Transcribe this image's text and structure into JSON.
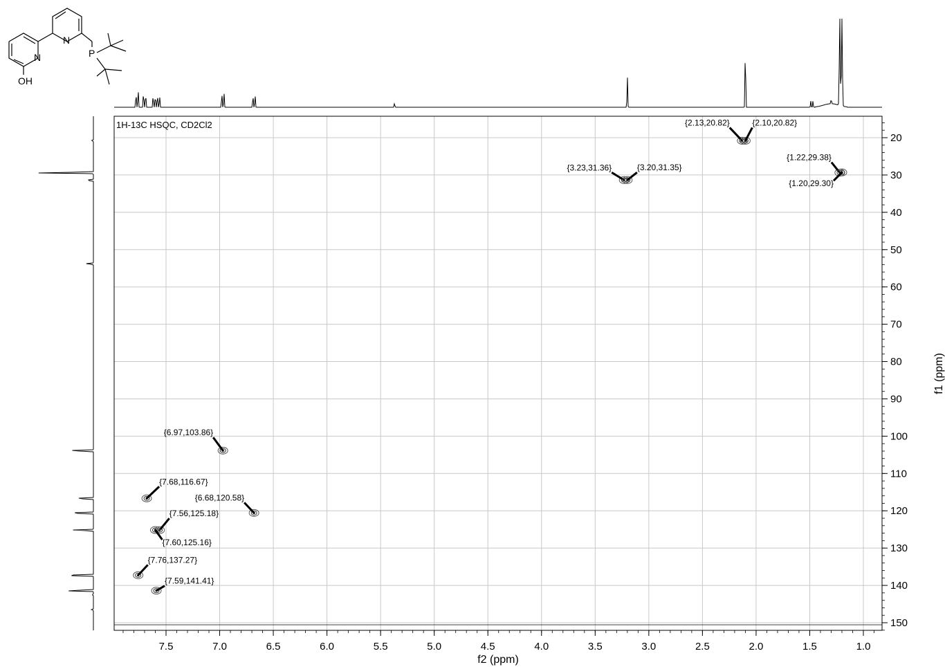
{
  "chart_data": {
    "type": "scatter",
    "title": "1H-13C HSQC, CD2Cl2",
    "xlabel": "f2 (ppm)",
    "ylabel": "f1 (ppm)",
    "xlim": [
      8.0,
      0.8
    ],
    "ylim": [
      15,
      152
    ],
    "x_reversed": true,
    "grid": true,
    "xticks": [
      7.5,
      7.0,
      6.5,
      6.0,
      5.5,
      5.0,
      4.5,
      4.0,
      3.5,
      3.0,
      2.5,
      2.0,
      1.5,
      1.0
    ],
    "yticks": [
      20,
      30,
      40,
      50,
      60,
      70,
      80,
      90,
      100,
      110,
      120,
      130,
      140,
      150
    ],
    "xtick_labels": [
      "7.5",
      "7.0",
      "6.5",
      "6.0",
      "5.5",
      "5.0",
      "4.5",
      "4.0",
      "3.5",
      "3.0",
      "2.5",
      "2.0",
      "1.5",
      "1.0"
    ],
    "ytick_labels": [
      "20",
      "30",
      "40",
      "50",
      "60",
      "70",
      "80",
      "90",
      "100",
      "110",
      "120",
      "130",
      "140",
      "150"
    ],
    "peaks": [
      {
        "x": 2.13,
        "y": 20.82,
        "label": "{2.13,20.82}"
      },
      {
        "x": 2.1,
        "y": 20.82,
        "label": "{2.10,20.82}"
      },
      {
        "x": 3.23,
        "y": 31.36,
        "label": "{3.23,31.36}"
      },
      {
        "x": 3.2,
        "y": 31.35,
        "label": "{3.20,31.35}"
      },
      {
        "x": 1.22,
        "y": 29.38,
        "label": "{1.22,29.38}"
      },
      {
        "x": 1.2,
        "y": 29.3,
        "label": "{1.20,29.30}"
      },
      {
        "x": 6.97,
        "y": 103.86,
        "label": "{6.97,103.86}"
      },
      {
        "x": 7.68,
        "y": 116.67,
        "label": "{7.68,116.67}"
      },
      {
        "x": 6.68,
        "y": 120.58,
        "label": "{6.68,120.58}"
      },
      {
        "x": 7.56,
        "y": 125.18,
        "label": "{7.56,125.18}"
      },
      {
        "x": 7.6,
        "y": 125.16,
        "label": "{7.60,125.16}"
      },
      {
        "x": 7.76,
        "y": 137.27,
        "label": "{7.76,137.27}"
      },
      {
        "x": 7.59,
        "y": 141.41,
        "label": "{7.59,141.41}"
      }
    ],
    "proton_projection": [
      {
        "x": 7.78,
        "h": 0.18
      },
      {
        "x": 7.76,
        "h": 0.22
      },
      {
        "x": 7.71,
        "h": 0.2
      },
      {
        "x": 7.69,
        "h": 0.18
      },
      {
        "x": 7.62,
        "h": 0.15
      },
      {
        "x": 7.6,
        "h": 0.16
      },
      {
        "x": 7.58,
        "h": 0.16
      },
      {
        "x": 7.56,
        "h": 0.14
      },
      {
        "x": 6.98,
        "h": 0.18
      },
      {
        "x": 6.96,
        "h": 0.18
      },
      {
        "x": 6.69,
        "h": 0.15
      },
      {
        "x": 6.67,
        "h": 0.15
      },
      {
        "x": 5.37,
        "h": 0.05
      },
      {
        "x": 3.2,
        "h": 0.36
      },
      {
        "x": 2.1,
        "h": 0.78
      },
      {
        "x": 1.49,
        "h": 0.07
      },
      {
        "x": 1.47,
        "h": 0.07
      },
      {
        "x": 1.3,
        "h": 0.06
      },
      {
        "x": 1.22,
        "h": 1.0
      },
      {
        "x": 1.2,
        "h": 1.0
      }
    ],
    "carbon_projection": [
      {
        "y": 29.4,
        "h": 1.0
      },
      {
        "y": 31.4,
        "h": 0.12
      },
      {
        "y": 20.8,
        "h": 0.03
      },
      {
        "y": 53.8,
        "h": 0.12
      },
      {
        "y": 103.9,
        "h": 0.46
      },
      {
        "y": 116.7,
        "h": 0.33
      },
      {
        "y": 120.6,
        "h": 0.45
      },
      {
        "y": 125.2,
        "h": 0.35
      },
      {
        "y": 137.3,
        "h": 0.55
      },
      {
        "y": 141.4,
        "h": 0.5
      },
      {
        "y": 142.5,
        "h": 0.02
      },
      {
        "y": 146.5,
        "h": 0.03
      }
    ]
  },
  "molecule": {
    "atoms": [
      {
        "label": "N"
      },
      {
        "label": "N"
      },
      {
        "label": "P"
      },
      {
        "label": "OH"
      }
    ]
  }
}
